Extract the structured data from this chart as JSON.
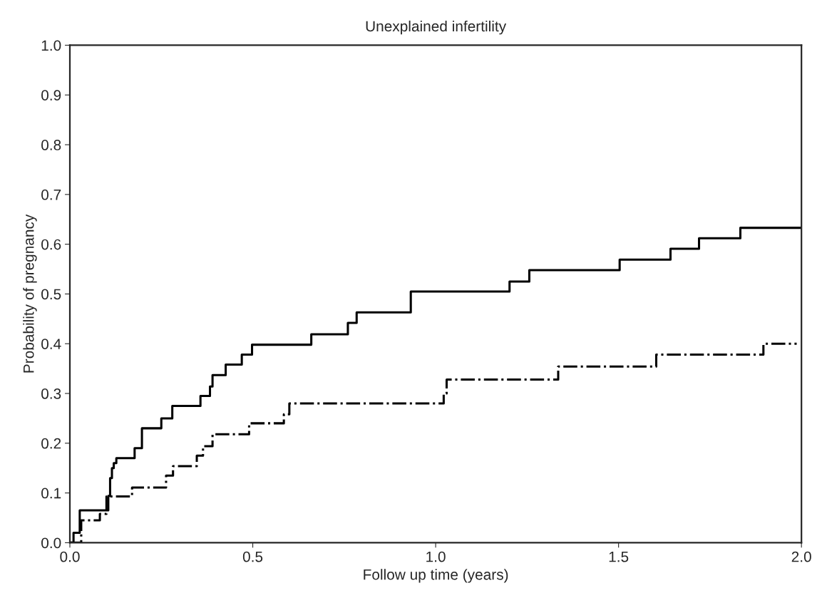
{
  "chart_data": {
    "type": "step",
    "title": "Unexplained infertility",
    "xlabel": "Follow up time (years)",
    "ylabel": "Probability of pregnancy",
    "xlim": [
      0,
      2
    ],
    "ylim": [
      0,
      1
    ],
    "xticks": [
      {
        "value": 0,
        "label": "0.0"
      },
      {
        "value": 0.5,
        "label": "0.5"
      },
      {
        "value": 1,
        "label": "1.0"
      },
      {
        "value": 1.5,
        "label": "1.5"
      },
      {
        "value": 2,
        "label": "2.0"
      }
    ],
    "yticks": [
      {
        "value": 0,
        "label": "0.0"
      },
      {
        "value": 0.1,
        "label": "0.1"
      },
      {
        "value": 0.2,
        "label": "0.2"
      },
      {
        "value": 0.3,
        "label": "0.3"
      },
      {
        "value": 0.4,
        "label": "0.4"
      },
      {
        "value": 0.5,
        "label": "0.5"
      },
      {
        "value": 0.6,
        "label": "0.6"
      },
      {
        "value": 0.7,
        "label": "0.7"
      },
      {
        "value": 0.8,
        "label": "0.8"
      },
      {
        "value": 0.9,
        "label": "0.9"
      },
      {
        "value": 1,
        "label": "1.0"
      }
    ],
    "grid": false,
    "legend": false,
    "series": [
      {
        "color": "#000000",
        "line_style": "solid",
        "x": [
          0,
          0.01,
          0.027,
          0.105,
          0.11,
          0.115,
          0.12,
          0.127,
          0.177,
          0.197,
          0.25,
          0.28,
          0.357,
          0.383,
          0.39,
          0.426,
          0.47,
          0.498,
          0.66,
          0.76,
          0.784,
          0.932,
          1.202,
          1.256,
          1.503,
          1.642,
          1.72,
          1.833,
          2.0
        ],
        "values": [
          0,
          0.02,
          0.065,
          0.094,
          0.13,
          0.15,
          0.16,
          0.17,
          0.19,
          0.23,
          0.25,
          0.275,
          0.295,
          0.314,
          0.337,
          0.358,
          0.378,
          0.398,
          0.419,
          0.442,
          0.463,
          0.505,
          0.525,
          0.548,
          0.569,
          0.591,
          0.612,
          0.633,
          0.633
        ]
      },
      {
        "color": "#000000",
        "line_style": "dashed",
        "x": [
          0,
          0.031,
          0.082,
          0.1,
          0.17,
          0.263,
          0.282,
          0.347,
          0.364,
          0.39,
          0.49,
          0.585,
          0.6,
          1.022,
          1.03,
          1.335,
          1.603,
          1.896,
          1.987
        ],
        "values": [
          0,
          0.045,
          0.058,
          0.093,
          0.111,
          0.135,
          0.154,
          0.175,
          0.194,
          0.218,
          0.24,
          0.258,
          0.28,
          0.3,
          0.328,
          0.354,
          0.378,
          0.4,
          0.4
        ]
      }
    ]
  }
}
